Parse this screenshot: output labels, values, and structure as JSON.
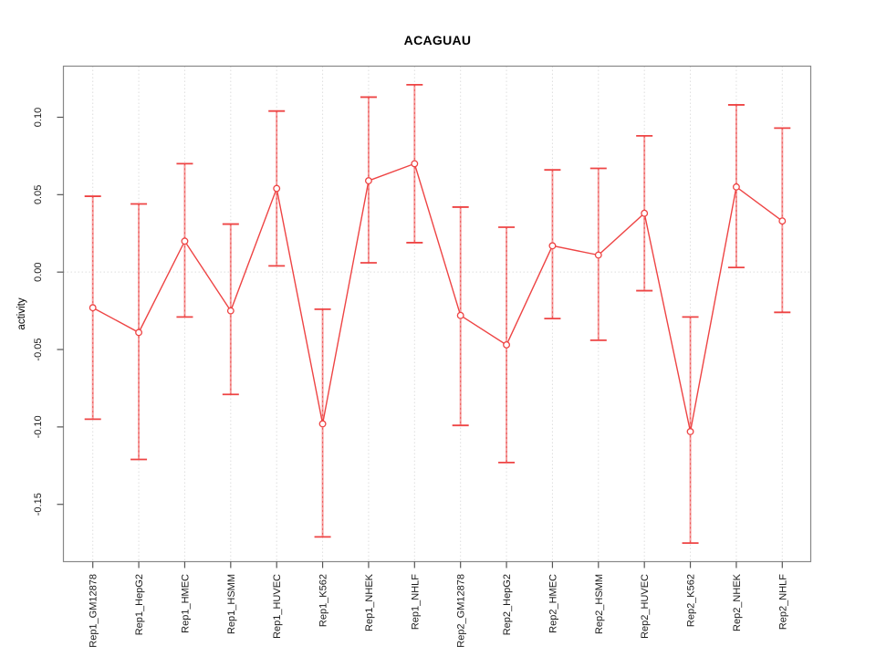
{
  "chart_data": {
    "type": "line",
    "title": "ACAGUAU",
    "xlabel": "",
    "ylabel": "activity",
    "legend": "none",
    "grid": "dotted vertical gridline at every category; dotted horizontal line at y=0",
    "point_style": "open circle with vertical error bars and end caps",
    "categories": [
      "Rep1_GM12878",
      "Rep1_HepG2",
      "Rep1_HMEC",
      "Rep1_HSMM",
      "Rep1_HUVEC",
      "Rep1_K562",
      "Rep1_NHEK",
      "Rep1_NHLF",
      "Rep2_GM12878",
      "Rep2_HepG2",
      "Rep2_HMEC",
      "Rep2_HSMM",
      "Rep2_HUVEC",
      "Rep2_K562",
      "Rep2_NHEK",
      "Rep2_NHLF"
    ],
    "series": [
      {
        "name": "activity",
        "values": [
          -0.023,
          -0.039,
          0.02,
          -0.025,
          0.054,
          -0.098,
          0.059,
          0.07,
          -0.028,
          -0.047,
          0.017,
          0.011,
          0.038,
          -0.103,
          0.055,
          0.033
        ],
        "error_low": [
          -0.095,
          -0.121,
          -0.029,
          -0.079,
          0.004,
          -0.171,
          0.006,
          0.019,
          -0.099,
          -0.123,
          -0.03,
          -0.044,
          -0.012,
          -0.175,
          0.003,
          -0.026
        ],
        "error_high": [
          0.049,
          0.044,
          0.07,
          0.031,
          0.104,
          -0.024,
          0.113,
          0.121,
          0.042,
          0.029,
          0.066,
          0.067,
          0.088,
          -0.029,
          0.108,
          0.093
        ]
      }
    ],
    "ytick_labels": [
      "0.10",
      "0.05",
      "0.00",
      "-0.05",
      "-0.10",
      "-0.15"
    ],
    "yticks": [
      0.1,
      0.05,
      0.0,
      -0.05,
      -0.1,
      -0.15
    ],
    "ylim": [
      -0.187,
      0.133
    ],
    "colors": {
      "series_line": "#ee4444",
      "error_bar_fill": "#f49c9c",
      "error_bar_dash": "#ee5555",
      "point_stroke": "#ee4444",
      "gridline": "#dedede",
      "plot_border": "#888888",
      "axis_tick": "#555555",
      "tick_text": "#1a1a1a"
    }
  }
}
